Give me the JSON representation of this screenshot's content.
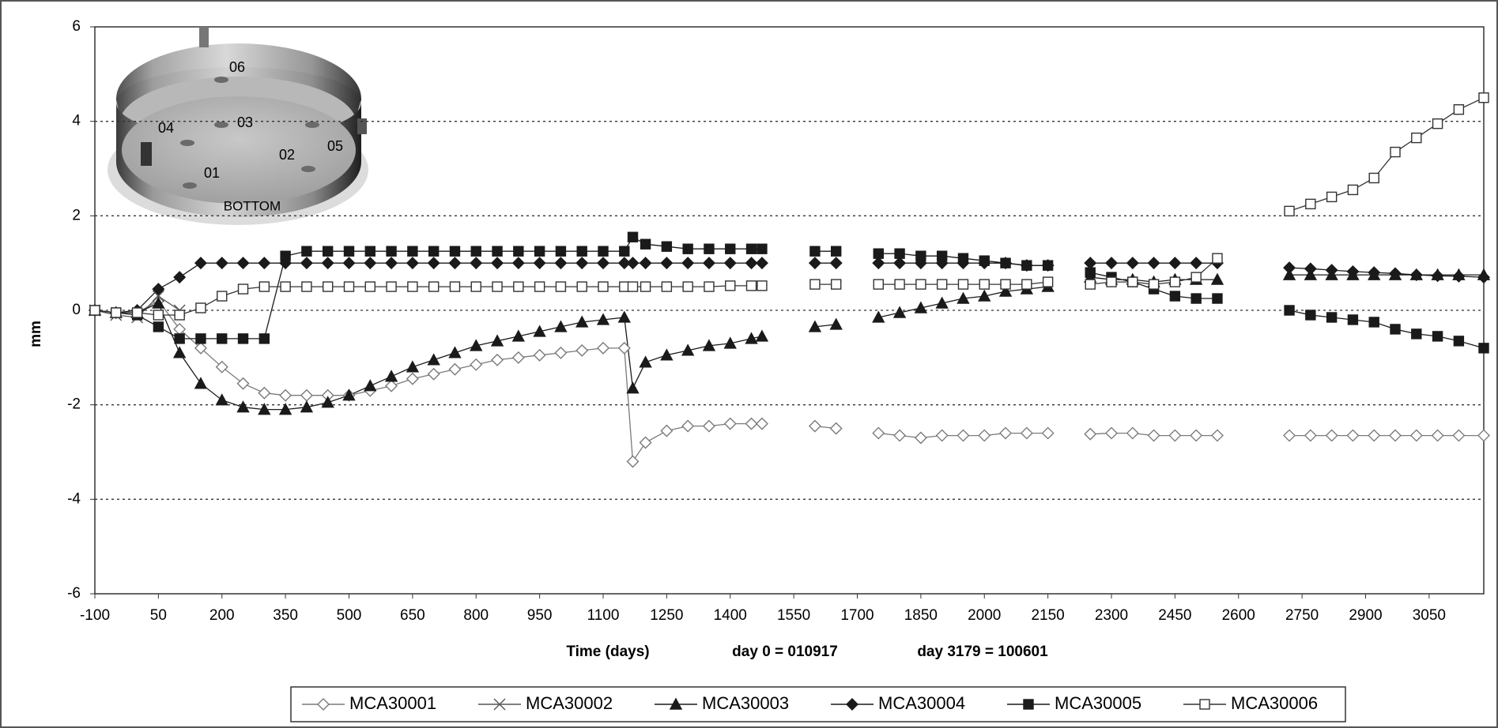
{
  "chart_data": {
    "type": "line",
    "ylabel": "mm",
    "xlabel": "Time (days)",
    "annotations": [
      "day 0 = 010917",
      "day 3179 = 100601"
    ],
    "xlim": [
      -100,
      3179
    ],
    "xticks": [
      -100,
      50,
      200,
      350,
      500,
      650,
      800,
      950,
      1100,
      1250,
      1400,
      1550,
      1700,
      1850,
      2000,
      2150,
      2300,
      2450,
      2600,
      2750,
      2900,
      3050
    ],
    "ylim": [
      -6,
      6
    ],
    "yticks": [
      -6,
      -4,
      -2,
      0,
      2,
      4,
      6
    ],
    "grid": true,
    "legend": "bottom",
    "inset": {
      "labels": [
        "06",
        "03",
        "04",
        "02",
        "05",
        "01"
      ],
      "caption": "BOTTOM"
    },
    "x": [
      -100,
      -50,
      0,
      50,
      100,
      150,
      200,
      250,
      300,
      350,
      400,
      450,
      500,
      550,
      600,
      650,
      700,
      750,
      800,
      850,
      900,
      950,
      1000,
      1050,
      1100,
      1150,
      1170,
      1200,
      1250,
      1300,
      1350,
      1400,
      1450,
      1475,
      1525,
      1600,
      1650,
      1690,
      1750,
      1800,
      1850,
      1900,
      1950,
      2000,
      2050,
      2100,
      2150,
      2200,
      2250,
      2300,
      2350,
      2400,
      2450,
      2500,
      2550,
      2640,
      2720,
      2770,
      2820,
      2870,
      2920,
      2970,
      3020,
      3070,
      3120,
      3179
    ],
    "series": [
      {
        "name": "MCA30001",
        "color": "#7a7a7a",
        "marker": "diamond-open",
        "values": [
          0,
          -0.05,
          -0.05,
          0.2,
          -0.4,
          -0.8,
          -1.2,
          -1.55,
          -1.75,
          -1.8,
          -1.8,
          -1.8,
          -1.8,
          -1.7,
          -1.6,
          -1.45,
          -1.35,
          -1.25,
          -1.15,
          -1.05,
          -1.0,
          -0.95,
          -0.9,
          -0.85,
          -0.8,
          -0.8,
          -3.2,
          -2.8,
          -2.55,
          -2.45,
          -2.45,
          -2.4,
          -2.4,
          -2.4,
          null,
          -2.45,
          -2.5,
          null,
          -2.6,
          -2.65,
          -2.7,
          -2.65,
          -2.65,
          -2.65,
          -2.6,
          -2.6,
          -2.6,
          null,
          -2.62,
          -2.6,
          -2.6,
          -2.65,
          -2.65,
          -2.65,
          -2.65,
          null,
          -2.65,
          -2.65,
          -2.65,
          -2.65,
          -2.65,
          -2.65,
          -2.65,
          -2.65,
          -2.65,
          -2.65
        ]
      },
      {
        "name": "MCA30002",
        "color": "#555555",
        "marker": "x",
        "values": [
          0,
          -0.1,
          -0.15,
          0.3,
          0.0,
          null,
          null,
          null,
          null,
          null,
          null,
          null,
          null,
          null,
          null,
          null,
          null,
          null,
          null,
          null,
          null,
          null,
          null,
          null,
          null,
          null,
          null,
          null,
          null,
          null,
          null,
          null,
          null,
          null,
          null,
          null,
          null,
          null,
          null,
          null,
          null,
          null,
          null,
          null,
          null,
          null,
          null,
          null,
          null,
          null,
          null,
          null,
          null,
          null,
          null,
          null,
          null,
          null,
          null,
          null,
          null,
          null,
          null,
          null,
          null,
          null
        ]
      },
      {
        "name": "MCA30003",
        "color": "#1a1a1a",
        "marker": "triangle",
        "values": [
          0,
          -0.05,
          -0.05,
          0.15,
          -0.9,
          -1.55,
          -1.9,
          -2.05,
          -2.1,
          -2.1,
          -2.05,
          -1.95,
          -1.8,
          -1.6,
          -1.4,
          -1.2,
          -1.05,
          -0.9,
          -0.75,
          -0.65,
          -0.55,
          -0.45,
          -0.35,
          -0.25,
          -0.2,
          -0.15,
          -1.65,
          -1.1,
          -0.95,
          -0.85,
          -0.75,
          -0.7,
          -0.6,
          -0.55,
          null,
          -0.35,
          -0.3,
          null,
          -0.15,
          -0.05,
          0.05,
          0.15,
          0.25,
          0.3,
          0.4,
          0.45,
          0.5,
          null,
          0.7,
          0.65,
          0.65,
          0.6,
          0.65,
          0.65,
          0.65,
          null,
          0.75,
          0.75,
          0.75,
          0.75,
          0.75,
          0.75,
          0.75,
          0.75,
          0.75,
          0.75
        ]
      },
      {
        "name": "MCA30004",
        "color": "#1a1a1a",
        "marker": "diamond",
        "values": [
          0,
          -0.05,
          0.0,
          0.45,
          0.7,
          1.0,
          1.0,
          1.0,
          1.0,
          1.0,
          1.0,
          1.0,
          1.0,
          1.0,
          1.0,
          1.0,
          1.0,
          1.0,
          1.0,
          1.0,
          1.0,
          1.0,
          1.0,
          1.0,
          1.0,
          1.0,
          1.0,
          1.0,
          1.0,
          1.0,
          1.0,
          1.0,
          1.0,
          1.0,
          null,
          1.0,
          1.0,
          null,
          1.0,
          1.0,
          1.0,
          1.0,
          1.0,
          1.0,
          1.0,
          0.95,
          0.95,
          null,
          1.0,
          1.0,
          1.0,
          1.0,
          1.0,
          1.0,
          1.0,
          null,
          0.9,
          0.88,
          0.85,
          0.82,
          0.8,
          0.78,
          0.75,
          0.73,
          0.72,
          0.7
        ]
      },
      {
        "name": "MCA30005",
        "color": "#1a1a1a",
        "marker": "square",
        "values": [
          0,
          -0.05,
          -0.1,
          -0.35,
          -0.6,
          -0.6,
          -0.6,
          -0.6,
          -0.6,
          1.15,
          1.25,
          1.25,
          1.25,
          1.25,
          1.25,
          1.25,
          1.25,
          1.25,
          1.25,
          1.25,
          1.25,
          1.25,
          1.25,
          1.25,
          1.25,
          1.25,
          1.55,
          1.4,
          1.35,
          1.3,
          1.3,
          1.3,
          1.3,
          1.3,
          null,
          1.25,
          1.25,
          null,
          1.2,
          1.2,
          1.15,
          1.15,
          1.1,
          1.05,
          1.0,
          0.95,
          0.95,
          null,
          0.8,
          0.7,
          0.6,
          0.45,
          0.3,
          0.25,
          0.25,
          null,
          0.0,
          -0.1,
          -0.15,
          -0.2,
          -0.25,
          -0.4,
          -0.5,
          -0.55,
          -0.65,
          -0.8
        ]
      },
      {
        "name": "MCA30006",
        "color": "#333333",
        "marker": "square-open",
        "values": [
          0,
          -0.05,
          -0.05,
          -0.1,
          -0.1,
          0.05,
          0.3,
          0.45,
          0.5,
          0.5,
          0.5,
          0.5,
          0.5,
          0.5,
          0.5,
          0.5,
          0.5,
          0.5,
          0.5,
          0.5,
          0.5,
          0.5,
          0.5,
          0.5,
          0.5,
          0.5,
          0.5,
          0.5,
          0.5,
          0.5,
          0.5,
          0.52,
          0.52,
          0.52,
          null,
          0.55,
          0.55,
          null,
          0.55,
          0.55,
          0.55,
          0.55,
          0.55,
          0.55,
          0.55,
          0.55,
          0.6,
          null,
          0.55,
          0.6,
          0.6,
          0.55,
          0.6,
          0.7,
          1.1,
          null,
          2.1,
          2.25,
          2.4,
          2.55,
          2.8,
          3.35,
          3.65,
          3.95,
          4.25,
          4.5
        ]
      }
    ]
  }
}
